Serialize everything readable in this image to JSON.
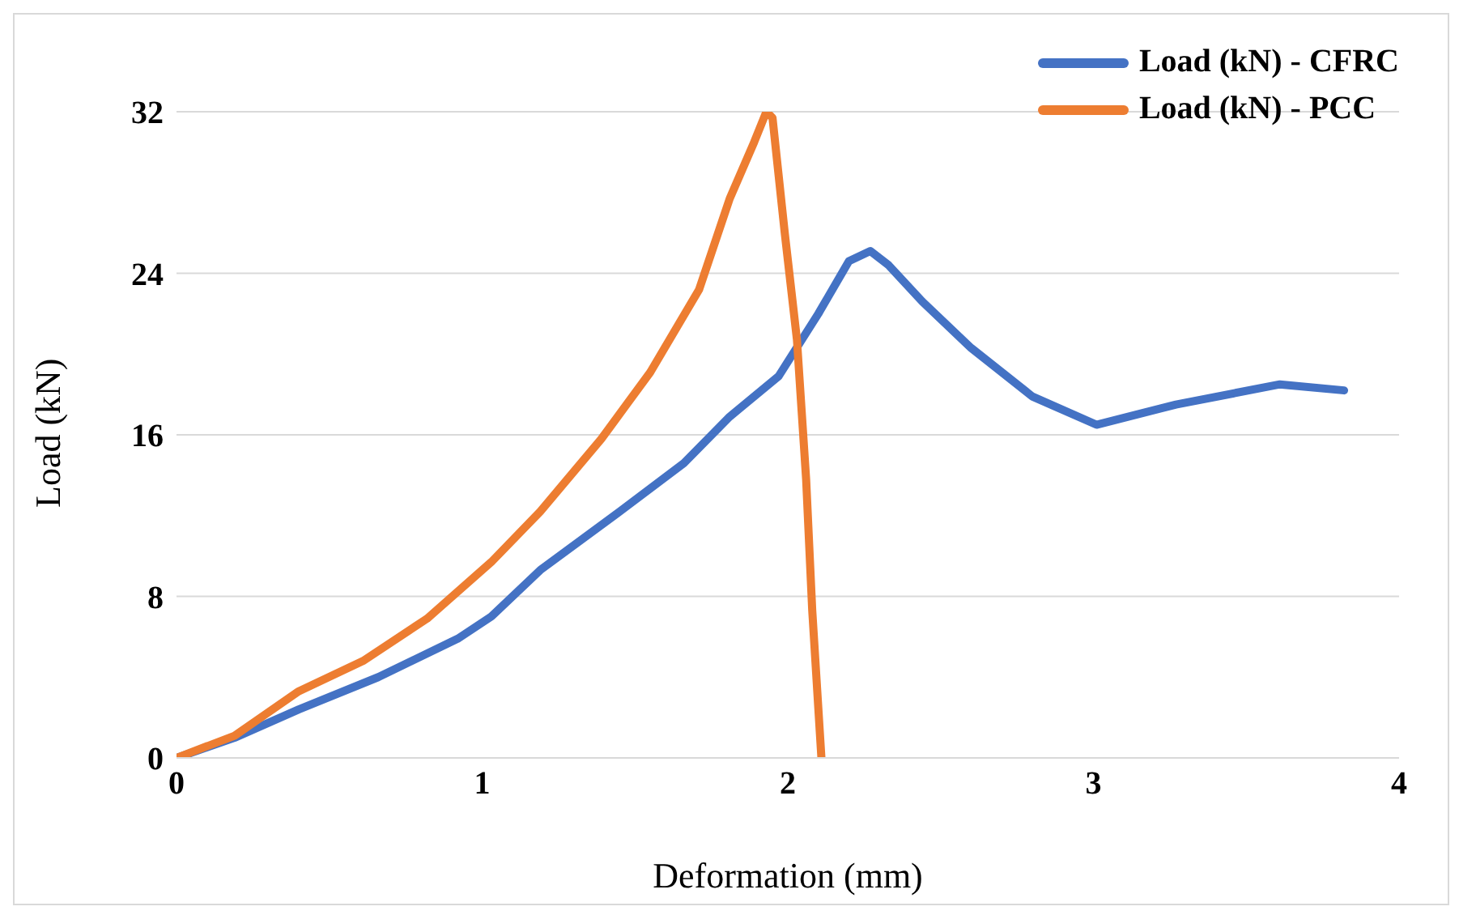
{
  "chart_data": {
    "type": "line",
    "xlabel": "Deformation (mm)",
    "ylabel": "Load (kN)",
    "xlim": [
      0,
      4
    ],
    "xticks": [
      0,
      1,
      2,
      3,
      4
    ],
    "ylim": [
      0,
      32
    ],
    "yticks": [
      0,
      8,
      16,
      24,
      32
    ],
    "grid": "y",
    "legend": "top right",
    "marker": "none",
    "line_style": "solid",
    "series": [
      {
        "name": "Load (kN) - CFRC",
        "color": "#4472c4",
        "x": [
          0,
          0.19,
          0.4,
          0.66,
          0.92,
          1.03,
          1.19,
          1.45,
          1.66,
          1.81,
          1.97,
          2.1,
          2.2,
          2.27,
          2.33,
          2.44,
          2.6,
          2.8,
          3.01,
          3.27,
          3.61,
          3.82
        ],
        "values": [
          0,
          1.0,
          2.4,
          4.0,
          5.9,
          7.0,
          9.3,
          12.2,
          14.6,
          16.9,
          18.9,
          22,
          24.6,
          25.1,
          24.4,
          22.6,
          20.3,
          17.9,
          16.5,
          17.5,
          18.5,
          18.2
        ]
      },
      {
        "name": "Load (kN) - PCC",
        "color": "#ed7d31",
        "x": [
          0,
          0.19,
          0.4,
          0.61,
          0.82,
          1.03,
          1.19,
          1.39,
          1.55,
          1.71,
          1.81,
          1.89,
          1.93,
          1.95,
          1.99,
          2.03,
          2.06,
          2.08,
          2.11
        ],
        "values": [
          0,
          1.1,
          3.3,
          4.8,
          6.9,
          9.7,
          12.2,
          15.8,
          19.1,
          23.2,
          27.7,
          30.5,
          32,
          31.7,
          26,
          20.7,
          13.8,
          7.3,
          0
        ]
      }
    ]
  }
}
